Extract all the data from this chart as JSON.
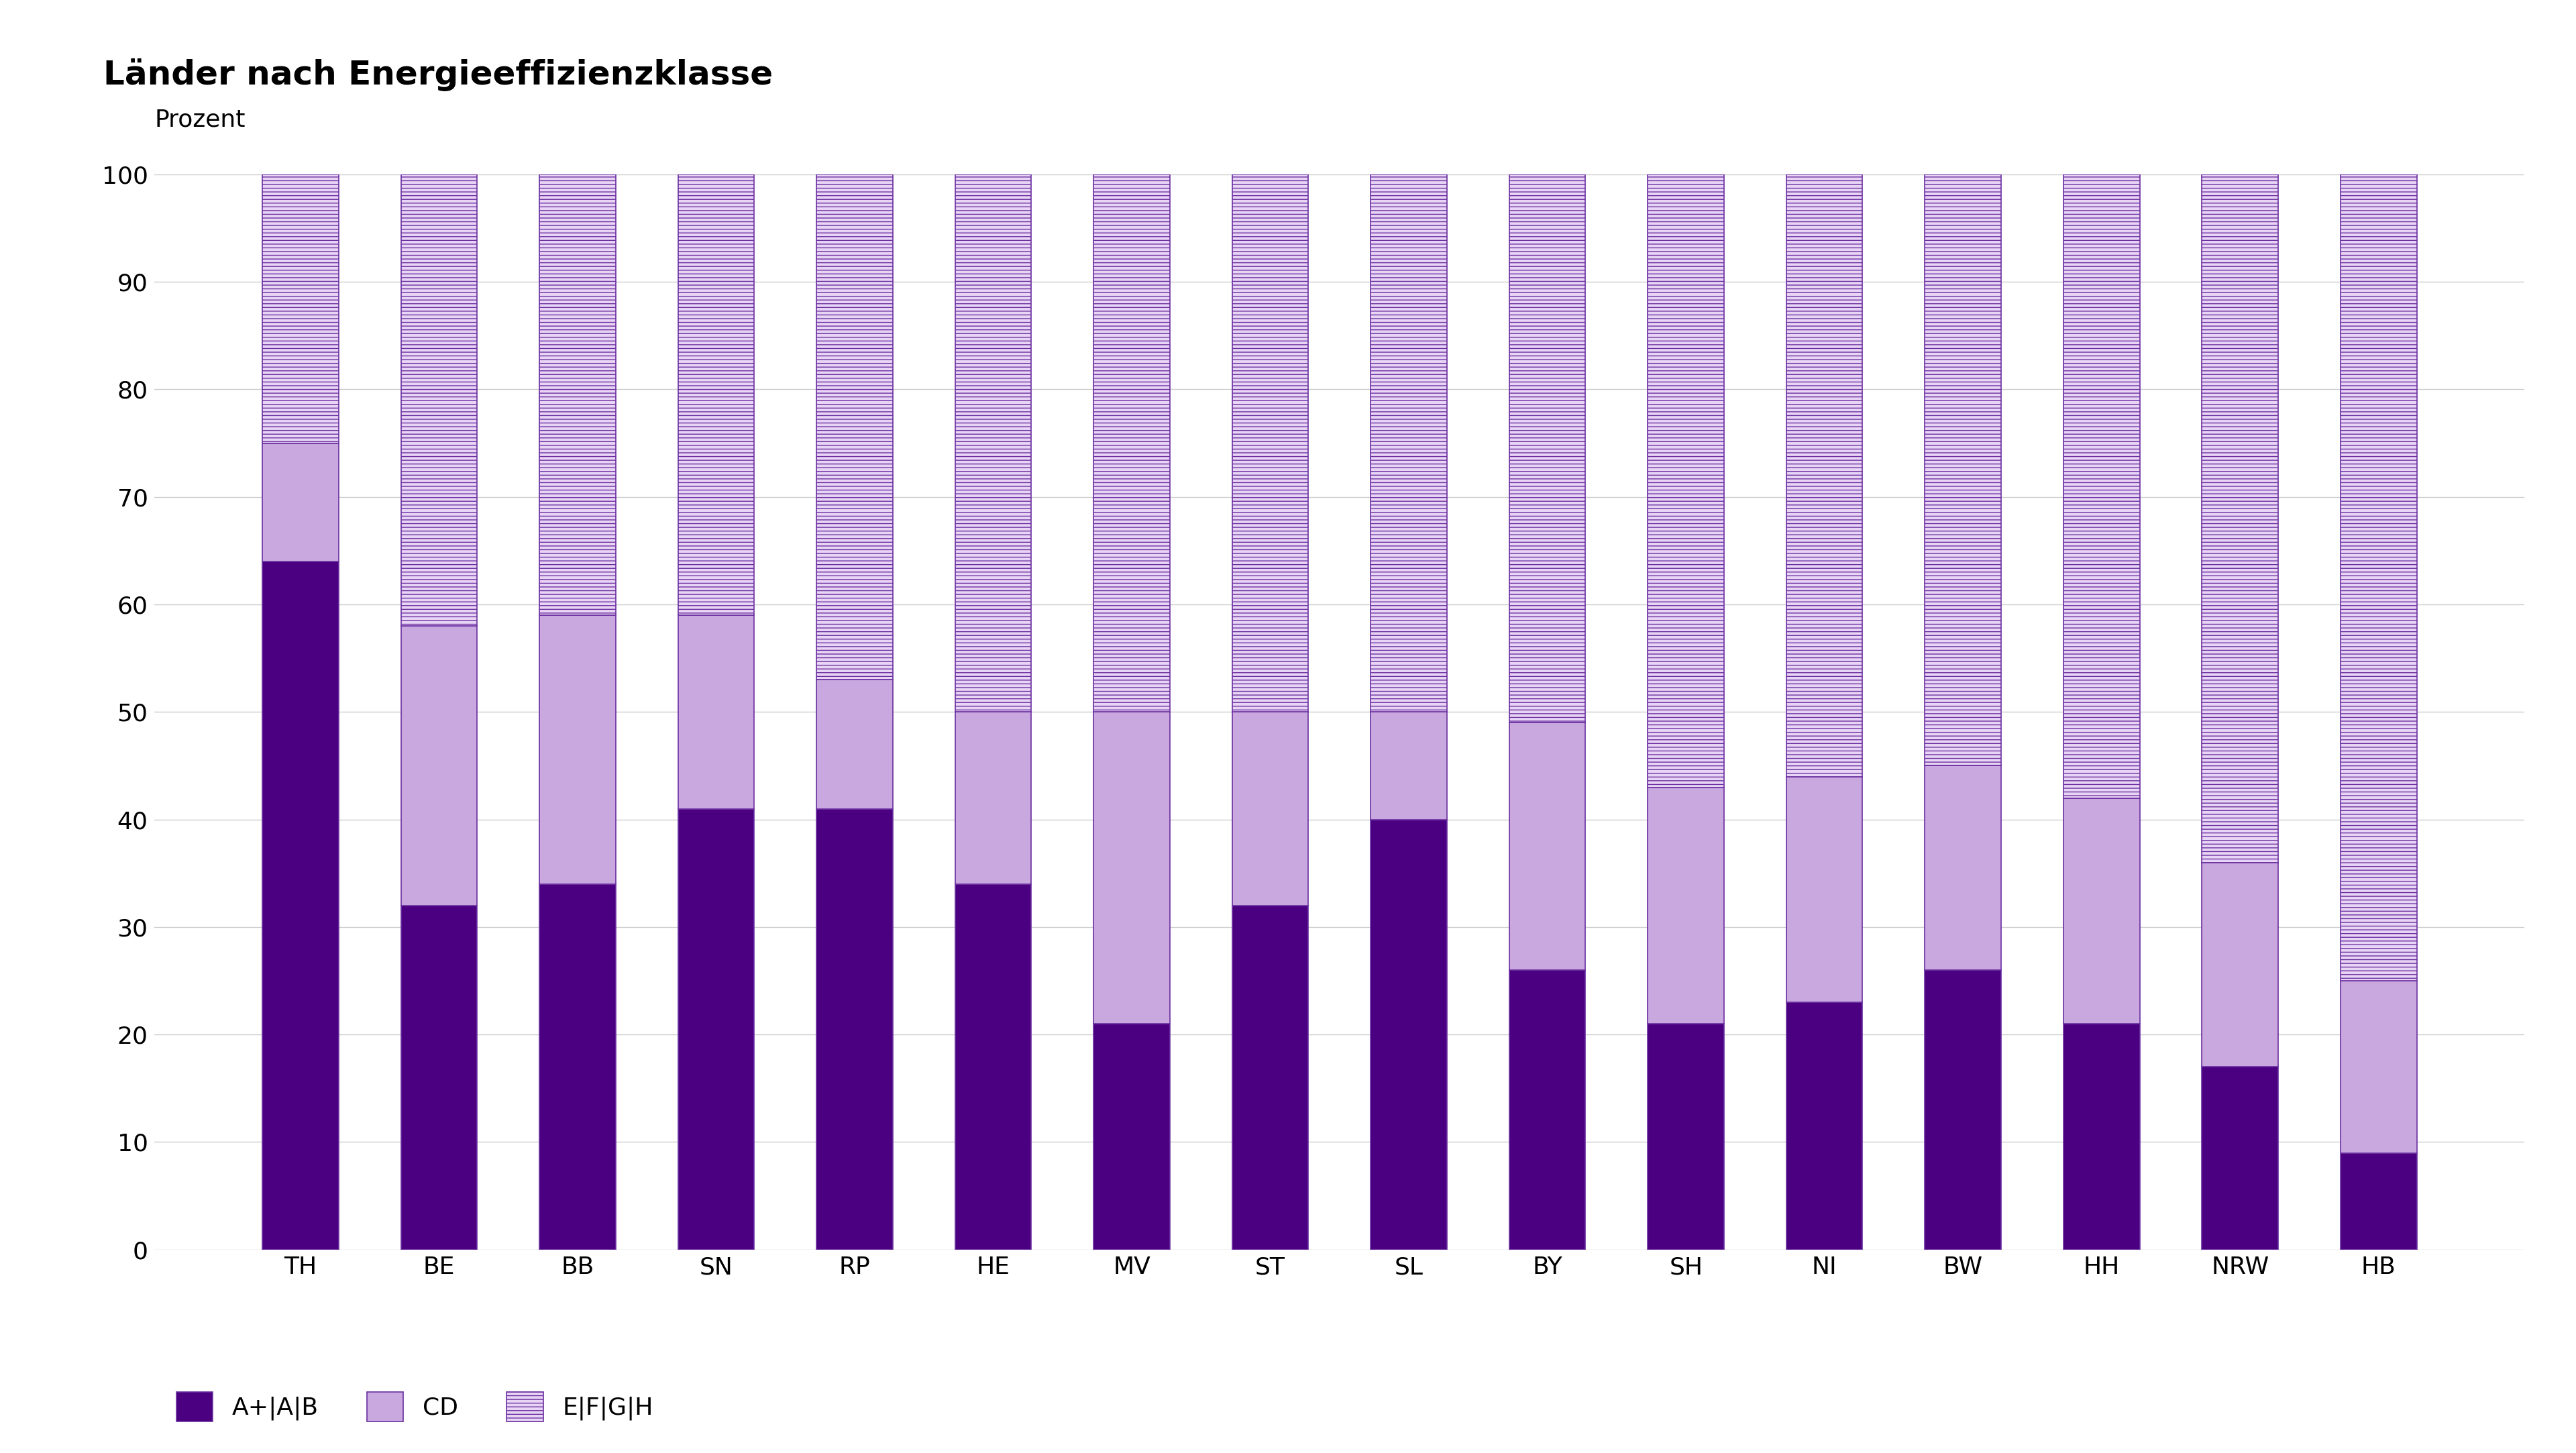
{
  "title": "Länder nach Energieeffizienzklasse",
  "ylabel": "Prozent",
  "categories": [
    "TH",
    "BE",
    "BB",
    "SN",
    "RP",
    "HE",
    "MV",
    "ST",
    "SL",
    "BY",
    "SH",
    "NI",
    "BW",
    "HH",
    "NRW",
    "HB"
  ],
  "series": {
    "A+|A|B": [
      64,
      32,
      34,
      41,
      41,
      34,
      21,
      32,
      40,
      26,
      21,
      23,
      26,
      21,
      17,
      9
    ],
    "CD": [
      11,
      26,
      25,
      18,
      12,
      16,
      29,
      18,
      10,
      23,
      22,
      21,
      19,
      21,
      19,
      16
    ],
    "E|F|G|H": [
      25,
      42,
      41,
      41,
      47,
      50,
      50,
      50,
      50,
      51,
      57,
      56,
      55,
      58,
      64,
      75
    ]
  },
  "colors": {
    "A+|A|B": "#4B0082",
    "CD": "#C9A8E0",
    "E|F|G|H": "#E8D5F5"
  },
  "hatch_efgh": "---",
  "ylim": [
    0,
    100
  ],
  "yticks": [
    0,
    10,
    20,
    30,
    40,
    50,
    60,
    70,
    80,
    90,
    100
  ],
  "background_color": "#ffffff",
  "grid_color": "#cccccc",
  "bar_edge_color": "#6B2FA0",
  "title_fontsize": 36,
  "label_fontsize": 26,
  "tick_fontsize": 26,
  "legend_fontsize": 26,
  "bar_width": 0.55
}
